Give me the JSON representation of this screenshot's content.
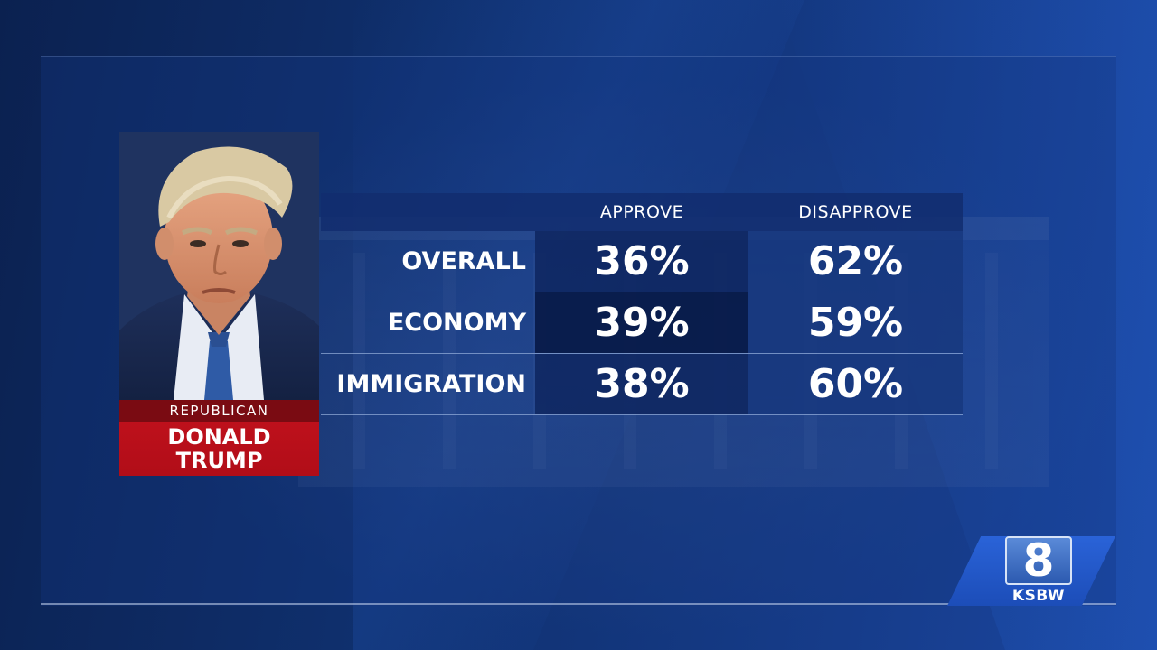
{
  "candidate": {
    "party": "REPUBLICAN",
    "first_name": "DONALD",
    "last_name": "TRUMP"
  },
  "table": {
    "headers": [
      "APPROVE",
      "DISAPPROVE"
    ],
    "rows": [
      {
        "label": "OVERALL",
        "approve": "36%",
        "disapprove": "62%"
      },
      {
        "label": "ECONOMY",
        "approve": "39%",
        "disapprove": "59%"
      },
      {
        "label": "IMMIGRATION",
        "approve": "38%",
        "disapprove": "60%"
      }
    ]
  },
  "logo": {
    "number": "8",
    "call_sign": "KSBW"
  },
  "colors": {
    "name_plate": "#c3121d",
    "party_band": "#7a0b12",
    "table_header": "#122d6e",
    "logo_blue": "#2a63d8"
  }
}
